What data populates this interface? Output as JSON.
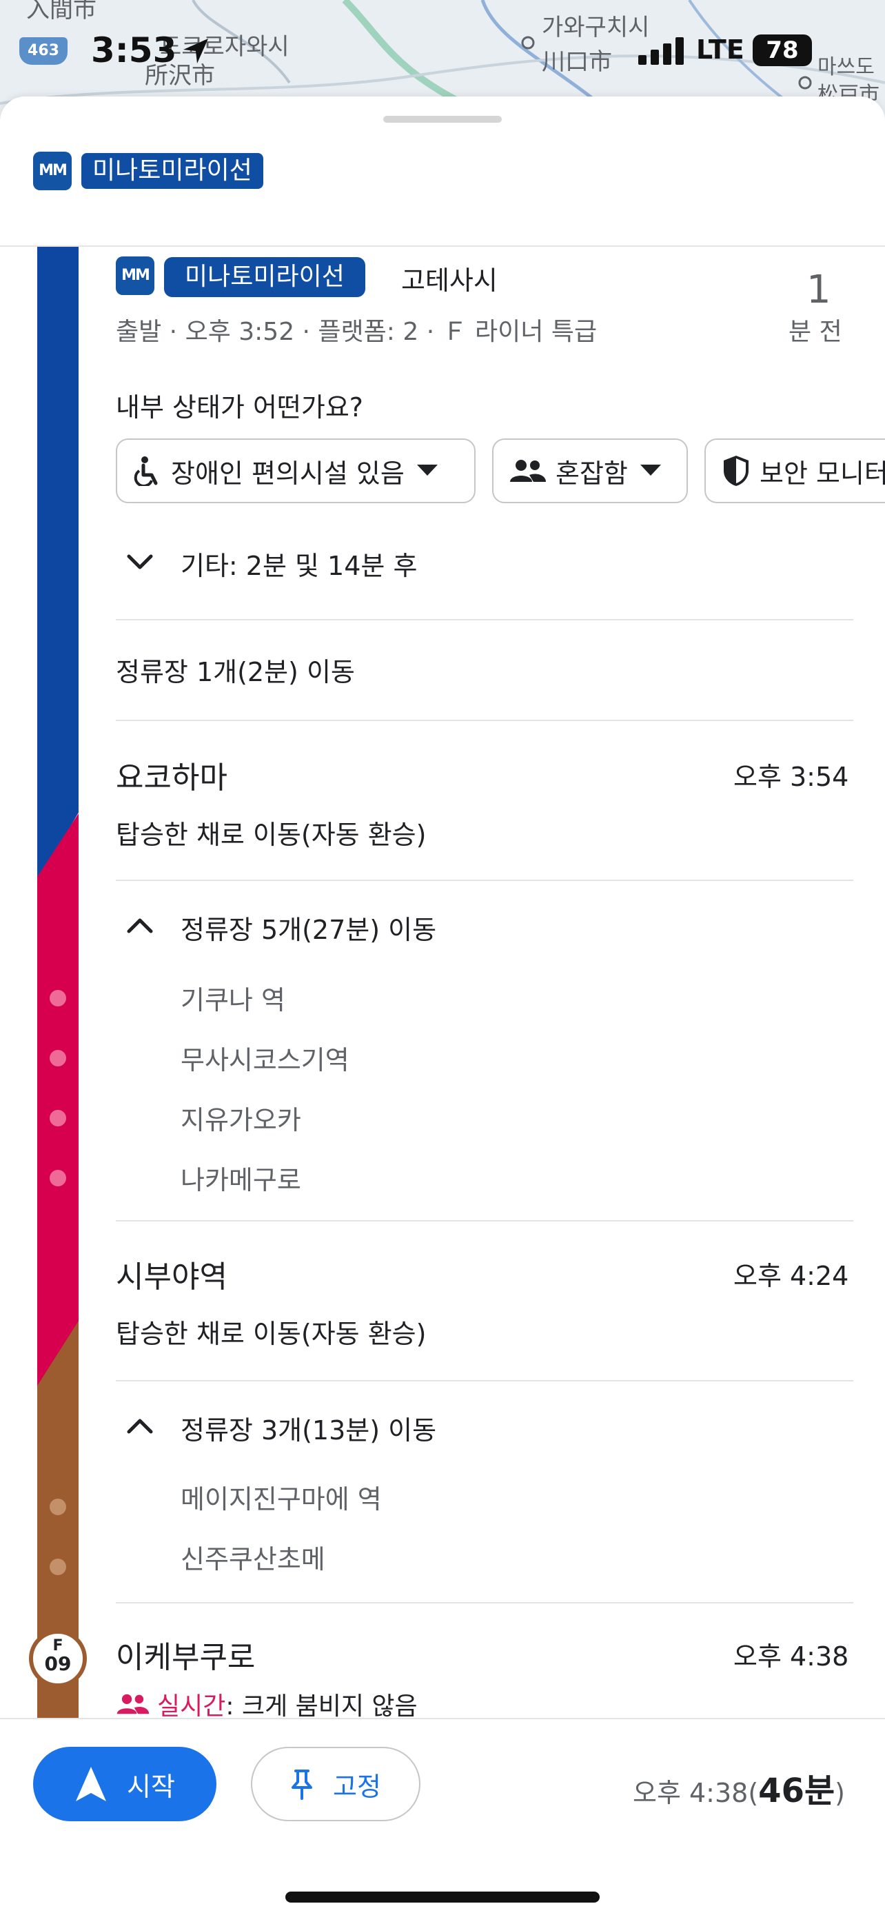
{
  "status_bar": {
    "time": "3:53",
    "network": "LTE",
    "battery": "78"
  },
  "map": {
    "labels": [
      "入間市",
      "도코로자와시",
      "所沢市",
      "가와구치시",
      "川口市",
      "마쓰도",
      "松戸市"
    ],
    "route_number": "463"
  },
  "header": {
    "logo": "MM",
    "line_name": "미나토미라이선"
  },
  "departure": {
    "logo": "MM",
    "line_name": "미나토미라이선",
    "destination": "고테사시",
    "details": "출발 · 오후 3:52 · 플랫폼: 2 · Ｆ 라이너 특급",
    "minutes": "1",
    "minutes_unit": "분 전",
    "crowd_question": "내부 상태가 어떤가요?",
    "chips": [
      {
        "label": "장애인 편의시설 있음",
        "icon": "wheelchair-icon"
      },
      {
        "label": "혼잡함",
        "icon": "people-icon"
      },
      {
        "label": "보안 모니터링",
        "icon": "shield-icon"
      }
    ],
    "other_times": "기타: 2분 및 14분 후",
    "move_summary": "정류장 1개(2분) 이동"
  },
  "stops": [
    {
      "name": "요코하마",
      "time": "오후 3:54",
      "note": "탑승한 채로 이동(자동 환승)",
      "move_summary": "정류장 5개(27분) 이동",
      "intermediate": [
        "기쿠나 역",
        "무사시코스기역",
        "지유가오카",
        "나카메구로"
      ]
    },
    {
      "name": "시부야역",
      "time": "오후 4:24",
      "note": "탑승한 채로 이동(자동 환승)",
      "move_summary": "정류장 3개(13분) 이동",
      "intermediate": [
        "메이지진구마에 역",
        "신주쿠산초메"
      ]
    },
    {
      "name": "이케부쿠로",
      "time": "오후 4:38",
      "station_code_letter": "F",
      "station_code_number": "09",
      "realtime_label": "실시간",
      "realtime_text": ": 크게 붐비지 않음"
    }
  ],
  "bottom_bar": {
    "start_label": "시작",
    "pin_label": "고정",
    "arrival": "오후 4:38(",
    "duration": "46분",
    "close_paren": ")"
  },
  "colors": {
    "minatomirai": "#0d47a1",
    "toyoko": "#d6004e",
    "fukutoshin": "#9c5c30",
    "accent": "#1a73e8",
    "realtime": "#d81b60"
  }
}
